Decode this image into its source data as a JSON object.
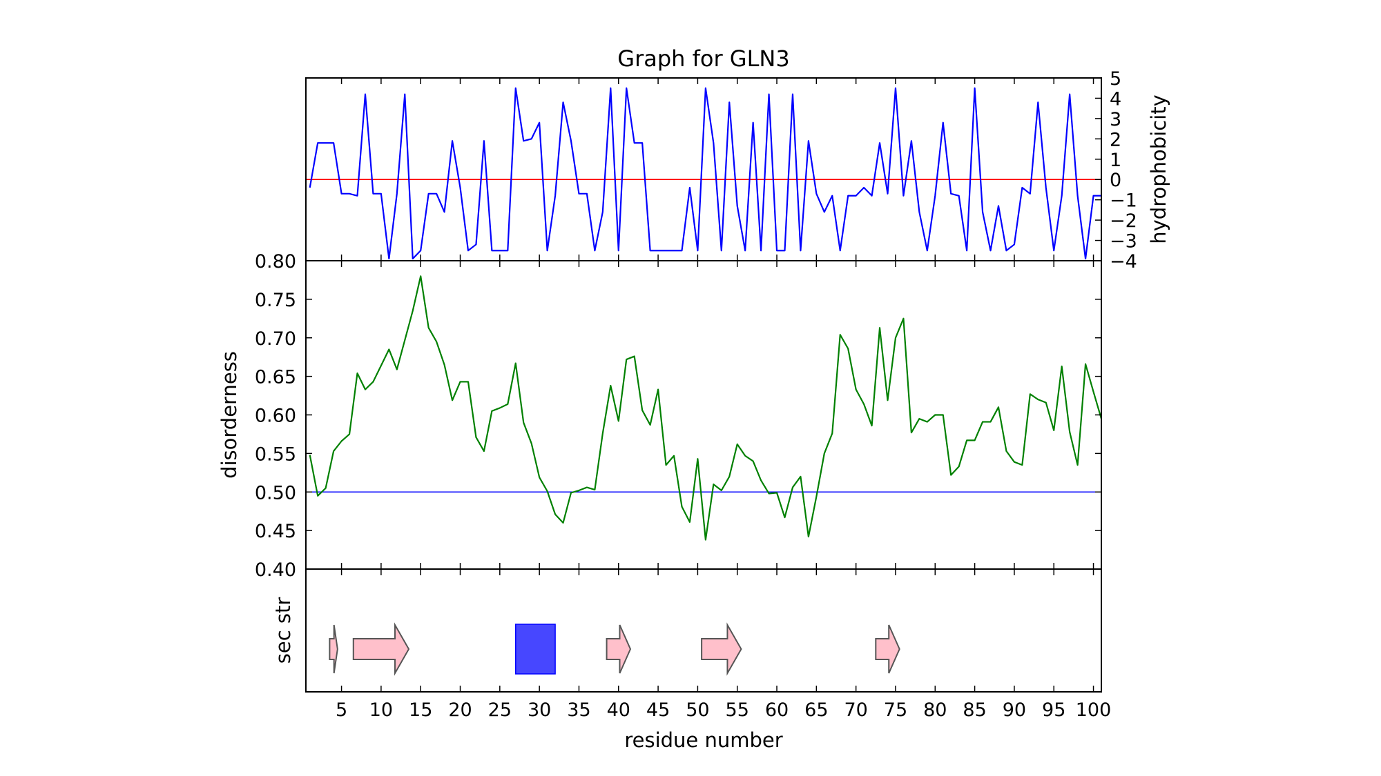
{
  "chart_data": [
    {
      "type": "line",
      "panel": "hydrophobicity",
      "title": "Graph for GLN3",
      "ylabel": "hydrophobicity",
      "xlim": [
        0.5,
        101
      ],
      "ylim": [
        -4,
        5
      ],
      "yticks": [
        "−4",
        "−3",
        "−2",
        "−1",
        "0",
        "1",
        "2",
        "3",
        "4",
        "5"
      ],
      "reference_line": 0,
      "colors": {
        "line": "#0000ff",
        "reference": "#ff0000"
      },
      "x": [
        1,
        2,
        3,
        4,
        5,
        6,
        7,
        8,
        9,
        10,
        11,
        12,
        13,
        14,
        15,
        16,
        17,
        18,
        19,
        20,
        21,
        22,
        23,
        24,
        25,
        26,
        27,
        28,
        29,
        30,
        31,
        32,
        33,
        34,
        35,
        36,
        37,
        38,
        39,
        40,
        41,
        42,
        43,
        44,
        45,
        46,
        47,
        48,
        49,
        50,
        51,
        52,
        53,
        54,
        55,
        56,
        57,
        58,
        59,
        60,
        61,
        62,
        63,
        64,
        65,
        66,
        67,
        68,
        69,
        70,
        71,
        72,
        73,
        74,
        75,
        76,
        77,
        78,
        79,
        80,
        81,
        82,
        83,
        84,
        85,
        86,
        87,
        88,
        89,
        90,
        91,
        92,
        93,
        94,
        95,
        96,
        97,
        98,
        99,
        100,
        101
      ],
      "values": [
        -0.4,
        1.8,
        1.8,
        1.8,
        -0.7,
        -0.7,
        -0.8,
        4.2,
        -0.7,
        -0.7,
        -3.9,
        -0.7,
        4.2,
        -3.9,
        -3.5,
        -0.7,
        -0.7,
        -1.6,
        1.9,
        -0.4,
        -3.5,
        -3.2,
        1.9,
        -3.5,
        -3.5,
        -3.5,
        4.5,
        1.9,
        2.0,
        2.8,
        -3.5,
        -0.8,
        3.8,
        1.9,
        -0.7,
        -0.7,
        -3.5,
        -1.6,
        4.5,
        -3.5,
        4.5,
        1.8,
        1.8,
        -3.5,
        -3.5,
        -3.5,
        -3.5,
        -3.5,
        -0.4,
        -3.5,
        4.5,
        1.8,
        -3.5,
        3.8,
        -1.3,
        -3.5,
        2.8,
        -3.5,
        4.2,
        -3.5,
        -3.5,
        4.2,
        -3.5,
        1.9,
        -0.7,
        -1.6,
        -0.8,
        -3.5,
        -0.8,
        -0.8,
        -0.4,
        -0.8,
        1.8,
        -0.7,
        4.5,
        -0.8,
        1.9,
        -1.6,
        -3.5,
        -0.8,
        2.8,
        -0.7,
        -0.8,
        -3.5,
        4.5,
        -1.6,
        -3.5,
        -1.3,
        -3.5,
        -3.2,
        -0.4,
        -0.7,
        3.8,
        -0.4,
        -3.5,
        -0.8,
        4.2,
        -0.8,
        -3.9,
        -0.8,
        -0.8
      ]
    },
    {
      "type": "line",
      "panel": "disorderness",
      "ylabel": "disorderness",
      "xlim": [
        0.5,
        101
      ],
      "ylim": [
        0.4,
        0.8
      ],
      "yticks": [
        "0.40",
        "0.45",
        "0.50",
        "0.55",
        "0.60",
        "0.65",
        "0.70",
        "0.75",
        "0.80"
      ],
      "reference_line": 0.5,
      "colors": {
        "line": "#008000",
        "reference": "#0000ff"
      },
      "x": [
        1,
        2,
        3,
        4,
        5,
        6,
        7,
        8,
        9,
        10,
        11,
        12,
        13,
        14,
        15,
        16,
        17,
        18,
        19,
        20,
        21,
        22,
        23,
        24,
        25,
        26,
        27,
        28,
        29,
        30,
        31,
        32,
        33,
        34,
        35,
        36,
        37,
        38,
        39,
        40,
        41,
        42,
        43,
        44,
        45,
        46,
        47,
        48,
        49,
        50,
        51,
        52,
        53,
        54,
        55,
        56,
        57,
        58,
        59,
        60,
        61,
        62,
        63,
        64,
        65,
        66,
        67,
        68,
        69,
        70,
        71,
        72,
        73,
        74,
        75,
        76,
        77,
        78,
        79,
        80,
        81,
        82,
        83,
        84,
        85,
        86,
        87,
        88,
        89,
        90,
        91,
        92,
        93,
        94,
        95,
        96,
        97,
        98,
        99,
        100,
        101
      ],
      "values": [
        0.548,
        0.495,
        0.505,
        0.553,
        0.566,
        0.575,
        0.654,
        0.633,
        0.643,
        0.664,
        0.685,
        0.659,
        0.697,
        0.735,
        0.78,
        0.713,
        0.695,
        0.665,
        0.619,
        0.643,
        0.643,
        0.571,
        0.553,
        0.605,
        0.609,
        0.614,
        0.667,
        0.59,
        0.563,
        0.519,
        0.501,
        0.471,
        0.46,
        0.499,
        0.502,
        0.506,
        0.503,
        0.576,
        0.638,
        0.592,
        0.672,
        0.676,
        0.606,
        0.587,
        0.633,
        0.535,
        0.547,
        0.481,
        0.461,
        0.543,
        0.438,
        0.51,
        0.502,
        0.52,
        0.562,
        0.547,
        0.54,
        0.515,
        0.498,
        0.499,
        0.467,
        0.506,
        0.52,
        0.442,
        0.494,
        0.55,
        0.576,
        0.704,
        0.686,
        0.633,
        0.614,
        0.586,
        0.713,
        0.619,
        0.7,
        0.725,
        0.577,
        0.595,
        0.591,
        0.6,
        0.6,
        0.522,
        0.533,
        0.567,
        0.567,
        0.591,
        0.591,
        0.61,
        0.553,
        0.539,
        0.535,
        0.627,
        0.62,
        0.616,
        0.58,
        0.663,
        0.578,
        0.535,
        0.666,
        0.63,
        0.595
      ]
    },
    {
      "type": "other",
      "panel": "secondary structure",
      "ylabel": "sec str",
      "xlabel": "residue number",
      "xlim": [
        0.5,
        101
      ],
      "xticks": [
        5,
        10,
        15,
        20,
        25,
        30,
        35,
        40,
        45,
        50,
        55,
        60,
        65,
        70,
        75,
        80,
        85,
        90,
        95,
        100
      ],
      "colors": {
        "strand": "#ffc0cb",
        "helix": "#0000ff"
      },
      "elements": [
        {
          "kind": "strand",
          "start": 3.5,
          "end": 4.5
        },
        {
          "kind": "strand",
          "start": 6.5,
          "end": 13.5
        },
        {
          "kind": "helix",
          "start": 27,
          "end": 32
        },
        {
          "kind": "strand",
          "start": 38.5,
          "end": 41.5
        },
        {
          "kind": "strand",
          "start": 50.5,
          "end": 55.5
        },
        {
          "kind": "strand",
          "start": 72.5,
          "end": 75.5
        }
      ]
    }
  ]
}
